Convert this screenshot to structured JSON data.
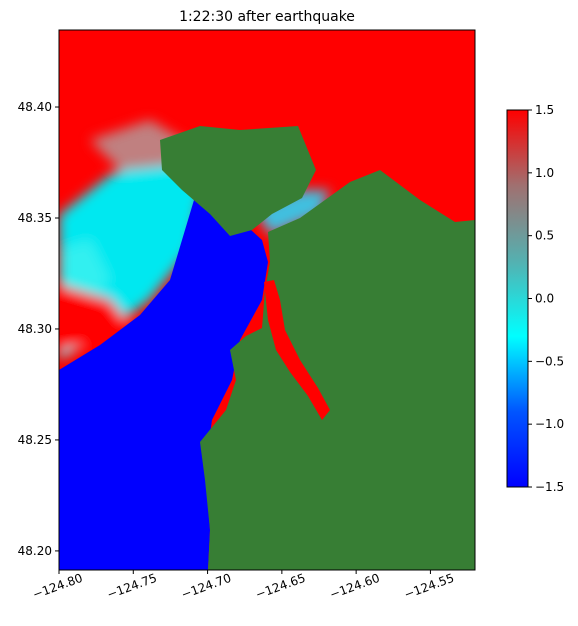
{
  "chart_data": {
    "type": "heatmap",
    "title": "1:22:30 after earthquake",
    "xlim": [
      -124.8,
      -124.52
    ],
    "ylim": [
      48.1914,
      48.4347
    ],
    "xticks": [
      {
        "value": -124.8,
        "label": "−124.80"
      },
      {
        "value": -124.75,
        "label": "−124.75"
      },
      {
        "value": -124.7,
        "label": "−124.70"
      },
      {
        "value": -124.65,
        "label": "−124.65"
      },
      {
        "value": -124.6,
        "label": "−124.60"
      },
      {
        "value": -124.55,
        "label": "−124.55"
      }
    ],
    "yticks": [
      {
        "value": 48.2,
        "label": "48.20"
      },
      {
        "value": 48.25,
        "label": "48.25"
      },
      {
        "value": 48.3,
        "label": "48.30"
      },
      {
        "value": 48.35,
        "label": "48.35"
      },
      {
        "value": 48.4,
        "label": "48.40"
      }
    ],
    "colorbar": {
      "lim": [
        -1.5,
        1.5
      ],
      "ticks": [
        {
          "value": -1.5,
          "label": "−1.5"
        },
        {
          "value": -1.0,
          "label": "−1.0"
        },
        {
          "value": -0.5,
          "label": "−0.5"
        },
        {
          "value": 0,
          "label": "0.0"
        },
        {
          "value": 0.5,
          "label": "0.5"
        },
        {
          "value": 1.0,
          "label": "1.0"
        },
        1.5
      ],
      "colors": [
        "#0000ff",
        "#0055ff",
        "#00ffff",
        "#55b0b0",
        "#a07070",
        "#ff0000"
      ]
    }
  }
}
